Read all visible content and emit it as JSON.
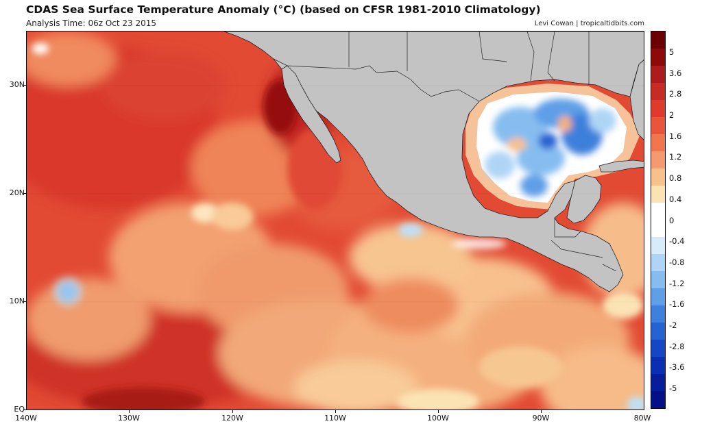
{
  "title": "CDAS Sea Surface Temperature Anomaly (°C) (based on CFSR 1981-2010 Climatology)",
  "subtitle": "Analysis Time: 06z Oct 23 2015",
  "credit": "Levi Cowan | tropicaltidbits.com",
  "map": {
    "latitude_labels": [
      "30N",
      "20N",
      "10N",
      "EQ"
    ],
    "longitude_labels": [
      "140W",
      "130W",
      "120W",
      "110W",
      "100W",
      "90W",
      "80W"
    ],
    "land_color": "#c3c3c3",
    "colors": {
      "deep_warm": "#8c0a0a",
      "warm": "#d63a2a",
      "moderate_warm": "#ee7a56",
      "mild_warm": "#f7c48c",
      "neutral": "#ffffff",
      "mild_cool": "#bfe0f7",
      "cool": "#5e9ee6",
      "deep_cool": "#1446c6"
    }
  },
  "colorbar": {
    "labels": [
      "5",
      "3.6",
      "2.8",
      "2",
      "1.6",
      "1.2",
      "0.8",
      "0.4",
      "0",
      "-0.4",
      "-0.8",
      "-1.2",
      "-1.6",
      "-2",
      "-2.8",
      "-3.6",
      "-5"
    ],
    "colors": [
      "#6b0000",
      "#8e0a0a",
      "#ad1c1c",
      "#c72b25",
      "#dd3c2d",
      "#e9553a",
      "#f07650",
      "#f49a70",
      "#f8c08c",
      "#fbe3b4",
      "#ffffff",
      "#ffffff",
      "#d6ecfb",
      "#aed5f6",
      "#86bdf0",
      "#5f9fe7",
      "#3e80dc",
      "#2562d2",
      "#1446c6",
      "#0a2fb3",
      "#061e9a",
      "#03108a"
    ]
  }
}
